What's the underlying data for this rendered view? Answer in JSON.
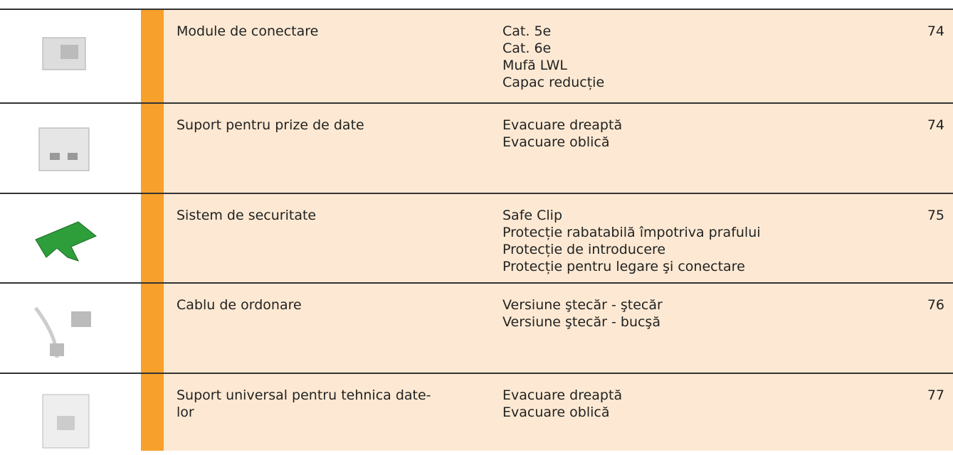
{
  "table": {
    "rows": [
      {
        "name": [
          "Module de conectare"
        ],
        "items": [
          "Cat. 5e",
          "Cat. 6e",
          "Mufă LWL",
          "Capac reducție"
        ],
        "page": 74
      },
      {
        "name": [
          "Suport pentru prize de date"
        ],
        "items": [
          "Evacuare dreaptă",
          "Evacuare oblică"
        ],
        "page": 74
      },
      {
        "name": [
          "Sistem de securitate"
        ],
        "items": [
          "Safe Clip",
          "Protecție rabatabilă împotriva prafului",
          "Protecție de introducere",
          "Protecție pentru legare şi conectare"
        ],
        "page": 75
      },
      {
        "name": [
          "Cablu de ordonare"
        ],
        "items": [
          "Versiune ştecăr - ştecăr",
          "Versiune ştecăr - bucşă"
        ],
        "page": 76
      },
      {
        "name": [
          "Suport universal pentru tehnica date-",
          "lor"
        ],
        "items": [
          "Evacuare dreaptă",
          "Evacuare oblică"
        ],
        "page": 77
      }
    ]
  }
}
